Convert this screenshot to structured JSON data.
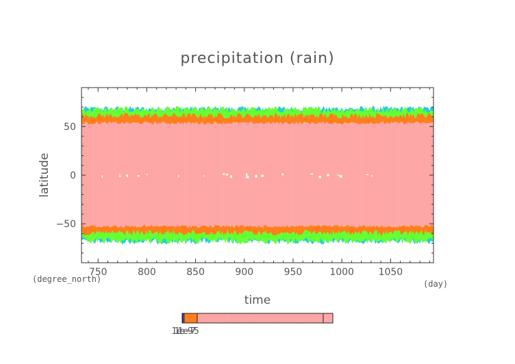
{
  "chart_data": {
    "type": "heatmap",
    "title": "precipitation (rain)",
    "xlabel": "time",
    "ylabel": "latitude",
    "x_units": "(day)",
    "y_units": "(degree_north)",
    "xlim": [
      733,
      1094
    ],
    "ylim": [
      -90,
      90
    ],
    "x_ticks": [
      "750",
      "800",
      "850",
      "900",
      "950",
      "1000",
      "1050"
    ],
    "x_tick_values": [
      750,
      800,
      850,
      900,
      950,
      1000,
      1050
    ],
    "y_ticks": [
      "50",
      "0",
      "−50"
    ],
    "y_tick_values": [
      50,
      0,
      -50
    ],
    "grid": false,
    "colorbar": {
      "tick_labels": [
        "1e−9",
        "1e−7",
        "1e−5"
      ],
      "colors": [
        "#2222cc",
        "#22ccdd",
        "#66ff33",
        "#ff7f1a",
        "#ffa8a8"
      ]
    },
    "regions": [
      {
        "level": "highest",
        "color": "#ffa8a8",
        "lat_from": -52,
        "lat_to": 53
      },
      {
        "level": "high",
        "color": "#ff7f1a",
        "lat_from": -58,
        "lat_to": 60
      },
      {
        "level": "medium",
        "color": "#66ff33",
        "lat_from": -66,
        "lat_to": 66
      }
    ],
    "colors": {
      "highest": "#ffa8a8",
      "high": "#ff7f1a",
      "medium": "#66ff33",
      "low": "#22ccdd",
      "lowest": "#2222cc"
    }
  }
}
